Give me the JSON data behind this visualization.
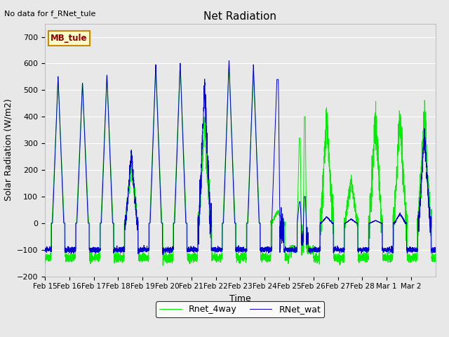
{
  "title": "Net Radiation",
  "xlabel": "Time",
  "ylabel": "Solar Radiation (W/m2)",
  "top_left_text": "No data for f_RNet_tule",
  "legend_box_text": "MB_tule",
  "ylim": [
    -200,
    750
  ],
  "yticks": [
    -200,
    -100,
    0,
    100,
    200,
    300,
    400,
    500,
    600,
    700
  ],
  "line1_label": "RNet_wat",
  "line1_color": "#0000cc",
  "line2_label": "Rnet_4way",
  "line2_color": "#00ee00",
  "bg_color": "#e8e8e8",
  "fig_color": "#e8e8e8",
  "n_days": 16,
  "points_per_day": 288,
  "title_fontsize": 11,
  "label_fontsize": 9,
  "tick_fontsize": 8
}
